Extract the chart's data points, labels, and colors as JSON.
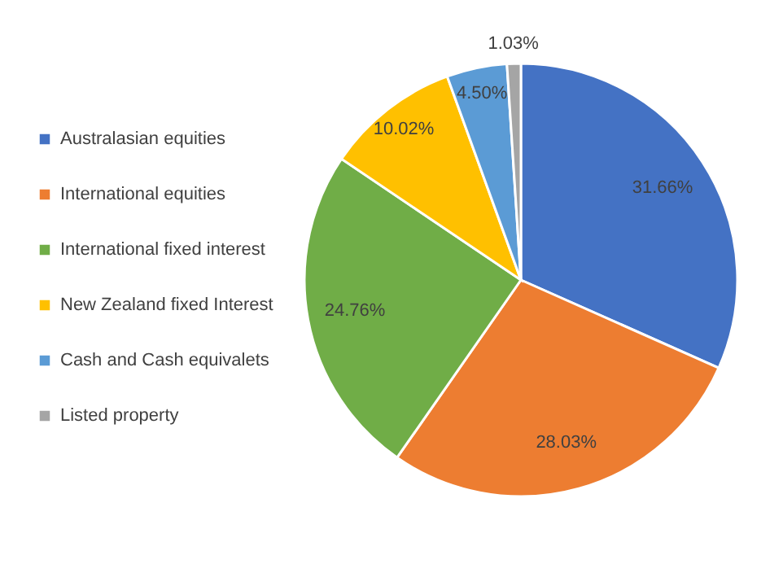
{
  "chart_data": {
    "type": "pie",
    "categories": [
      "Australasian  equities",
      "International equities",
      "International fixed interest",
      "New Zealand fixed Interest",
      "Cash and Cash equivalets",
      "Listed property"
    ],
    "values": [
      31.66,
      28.03,
      24.76,
      10.02,
      4.5,
      1.03
    ],
    "colors": [
      "#4472c4",
      "#ed7d31",
      "#70ad47",
      "#ffc000",
      "#5b9bd5",
      "#a5a5a5"
    ],
    "value_labels": [
      "31.66%",
      "28.03%",
      "24.76%",
      "10.02%",
      "4.50%",
      "1.03%"
    ],
    "legend": "left"
  }
}
